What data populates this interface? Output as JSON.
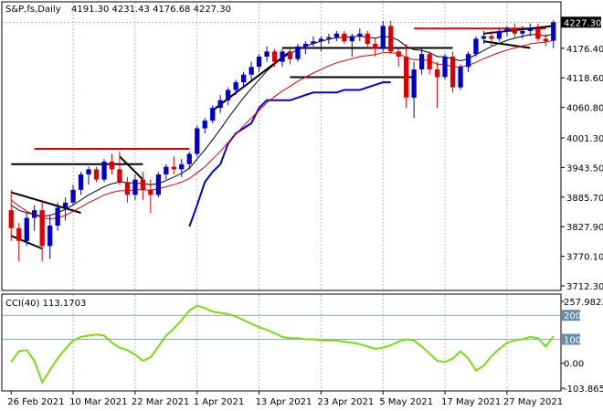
{
  "chart_data": [
    {
      "type": "candlestick",
      "header": {
        "symbol": "S&P,fs,Daily",
        "ohlc": "4191.30 4231.43 4176.68 4227.30"
      },
      "price_tag": "4227.30",
      "y_ticks": [
        "4176.40",
        "4118.60",
        "4060.80",
        "4001.30",
        "3943.50",
        "3885.70",
        "3827.90",
        "3770.10",
        "3712.30"
      ],
      "y_tick_values": [
        4176.4,
        4118.6,
        4060.8,
        4001.3,
        3943.5,
        3885.7,
        3827.9,
        3770.1,
        3712.3
      ],
      "ylim": [
        3712.3,
        4235.0
      ],
      "x_ticks": [
        {
          "label": "26 Feb 2021",
          "bar": 0
        },
        {
          "label": "10 Mar 2021",
          "bar": 8
        },
        {
          "label": "22 Mar 2021",
          "bar": 16
        },
        {
          "label": "1 Apr 2021",
          "bar": 24
        },
        {
          "label": "13 Apr 2021",
          "bar": 32
        },
        {
          "label": "23 Apr 2021",
          "bar": 40
        },
        {
          "label": "5 May 2021",
          "bar": 48
        },
        {
          "label": "17 May 2021",
          "bar": 56
        },
        {
          "label": "27 May 2021",
          "bar": 64
        }
      ],
      "candles": [
        [
          3860,
          3900,
          3800,
          3825
        ],
        [
          3825,
          3835,
          3760,
          3800
        ],
        [
          3800,
          3855,
          3790,
          3845
        ],
        [
          3845,
          3870,
          3820,
          3860
        ],
        [
          3860,
          3880,
          3760,
          3790
        ],
        [
          3790,
          3850,
          3765,
          3830
        ],
        [
          3830,
          3875,
          3820,
          3865
        ],
        [
          3865,
          3885,
          3840,
          3875
        ],
        [
          3875,
          3910,
          3870,
          3900
        ],
        [
          3900,
          3935,
          3890,
          3930
        ],
        [
          3930,
          3945,
          3910,
          3940
        ],
        [
          3940,
          3945,
          3915,
          3920
        ],
        [
          3920,
          3960,
          3915,
          3955
        ],
        [
          3955,
          3970,
          3930,
          3940
        ],
        [
          3940,
          3975,
          3910,
          3915
        ],
        [
          3915,
          3925,
          3875,
          3890
        ],
        [
          3890,
          3930,
          3880,
          3920
        ],
        [
          3920,
          3935,
          3880,
          3900
        ],
        [
          3900,
          3920,
          3855,
          3890
        ],
        [
          3890,
          3935,
          3885,
          3930
        ],
        [
          3930,
          3950,
          3920,
          3945
        ],
        [
          3945,
          3965,
          3930,
          3940
        ],
        [
          3940,
          3960,
          3925,
          3950
        ],
        [
          3950,
          3975,
          3940,
          3970
        ],
        [
          3970,
          4025,
          3965,
          4020
        ],
        [
          4020,
          4040,
          4010,
          4035
        ],
        [
          4035,
          4065,
          4030,
          4060
        ],
        [
          4060,
          4085,
          4050,
          4075
        ],
        [
          4075,
          4100,
          4065,
          4095
        ],
        [
          4095,
          4115,
          4085,
          4110
        ],
        [
          4110,
          4130,
          4100,
          4125
        ],
        [
          4125,
          4150,
          4115,
          4140
        ],
        [
          4140,
          4165,
          4130,
          4160
        ],
        [
          4160,
          4180,
          4150,
          4170
        ],
        [
          4170,
          4175,
          4140,
          4150
        ],
        [
          4150,
          4175,
          4140,
          4170
        ],
        [
          4170,
          4180,
          4145,
          4155
        ],
        [
          4155,
          4185,
          4150,
          4180
        ],
        [
          4180,
          4190,
          4165,
          4185
        ],
        [
          4185,
          4200,
          4180,
          4190
        ],
        [
          4190,
          4200,
          4170,
          4195
        ],
        [
          4195,
          4205,
          4185,
          4198
        ],
        [
          4198,
          4210,
          4190,
          4205
        ],
        [
          4205,
          4210,
          4185,
          4190
        ],
        [
          4190,
          4205,
          4160,
          4200
        ],
        [
          4200,
          4215,
          4190,
          4205
        ],
        [
          4205,
          4210,
          4175,
          4185
        ],
        [
          4185,
          4195,
          4160,
          4175
        ],
        [
          4175,
          4230,
          4170,
          4220
        ],
        [
          4220,
          4230,
          4165,
          4170
        ],
        [
          4170,
          4175,
          4140,
          4160
        ],
        [
          4160,
          4185,
          4060,
          4080
        ],
        [
          4080,
          4150,
          4040,
          4135
        ],
        [
          4135,
          4175,
          4125,
          4165
        ],
        [
          4165,
          4170,
          4125,
          4135
        ],
        [
          4135,
          4150,
          4060,
          4120
        ],
        [
          4120,
          4165,
          4115,
          4160
        ],
        [
          4160,
          4170,
          4090,
          4100
        ],
        [
          4100,
          4145,
          4095,
          4140
        ],
        [
          4140,
          4170,
          4130,
          4165
        ],
        [
          4165,
          4200,
          4160,
          4195
        ],
        [
          4195,
          4210,
          4185,
          4200
        ],
        [
          4200,
          4210,
          4180,
          4195
        ],
        [
          4195,
          4215,
          4190,
          4210
        ],
        [
          4210,
          4220,
          4200,
          4215
        ],
        [
          4215,
          4225,
          4195,
          4205
        ],
        [
          4205,
          4220,
          4195,
          4210
        ],
        [
          4210,
          4225,
          4200,
          4215
        ],
        [
          4215,
          4225,
          4190,
          4195
        ],
        [
          4195,
          4205,
          4180,
          4190
        ],
        [
          4191.3,
          4231.43,
          4176.68,
          4227.3
        ]
      ],
      "ma_red": [
        3880,
        3868,
        3858,
        3852,
        3845,
        3843,
        3845,
        3850,
        3858,
        3866,
        3875,
        3882,
        3890,
        3895,
        3898,
        3898,
        3900,
        3900,
        3899,
        3902,
        3906,
        3910,
        3915,
        3922,
        3933,
        3945,
        3960,
        3975,
        3992,
        4008,
        4025,
        4040,
        4055,
        4070,
        4082,
        4093,
        4102,
        4112,
        4120,
        4128,
        4135,
        4142,
        4148,
        4152,
        4156,
        4160,
        4162,
        4164,
        4168,
        4168,
        4166,
        4158,
        4154,
        4154,
        4152,
        4145,
        4145,
        4140,
        4140,
        4143,
        4149,
        4156,
        4162,
        4168,
        4173,
        4177,
        4181,
        4185,
        4187,
        4188,
        4192
      ],
      "ma_black": [
        3870,
        3860,
        3855,
        3852,
        3848,
        3850,
        3855,
        3862,
        3870,
        3880,
        3890,
        3898,
        3906,
        3912,
        3915,
        3914,
        3913,
        3912,
        3910,
        3912,
        3918,
        3925,
        3932,
        3942,
        3960,
        3978,
        3998,
        4018,
        4040,
        4060,
        4080,
        4098,
        4115,
        4132,
        4145,
        4157,
        4166,
        4174,
        4180,
        4186,
        4190,
        4194,
        4197,
        4198,
        4199,
        4200,
        4198,
        4196,
        4200,
        4198,
        4192,
        4180,
        4174,
        4172,
        4168,
        4160,
        4160,
        4155,
        4152,
        4156,
        4164,
        4172,
        4180,
        4186,
        4192,
        4196,
        4200,
        4203,
        4203,
        4200,
        4205
      ],
      "blue_line": [
        null,
        null,
        null,
        null,
        null,
        null,
        null,
        null,
        null,
        null,
        null,
        null,
        null,
        null,
        null,
        null,
        null,
        null,
        null,
        null,
        null,
        null,
        null,
        3828,
        3870,
        3915,
        3935,
        3950,
        3990,
        4010,
        4020,
        4030,
        4060,
        4075,
        4075,
        4075,
        4075,
        4080,
        4085,
        4090,
        4090,
        4090,
        4090,
        4095,
        4095,
        4095,
        4100,
        4105,
        4110,
        4110,
        null,
        null,
        null,
        null,
        null,
        null,
        null,
        null,
        null,
        null,
        null,
        null,
        null,
        null,
        null,
        null,
        null,
        null,
        null,
        null,
        null
      ],
      "trendlines": [
        {
          "color": "#dd0000",
          "x1": 3,
          "y1": 3980,
          "x2": 23,
          "y2": 3980
        },
        {
          "color": "#dd0000",
          "x1": 52,
          "y1": 4215,
          "x2": 69,
          "y2": 4215
        },
        {
          "color": "#000000",
          "x1": 0,
          "y1": 3950,
          "x2": 17,
          "y2": 3950
        },
        {
          "color": "#000000",
          "x1": 0,
          "y1": 3895,
          "x2": 9,
          "y2": 3855
        },
        {
          "color": "#000000",
          "x1": 0,
          "y1": 3810,
          "x2": 4,
          "y2": 3785
        },
        {
          "color": "#000000",
          "x1": 14,
          "y1": 3965,
          "x2": 17,
          "y2": 3920
        },
        {
          "color": "#000000",
          "x1": 26,
          "y1": 4055,
          "x2": 36,
          "y2": 4170
        },
        {
          "color": "#000000",
          "x1": 35,
          "y1": 4177,
          "x2": 57,
          "y2": 4177
        },
        {
          "color": "#000000",
          "x1": 36,
          "y1": 4120,
          "x2": 52,
          "y2": 4120
        },
        {
          "color": "#000000",
          "x1": 61,
          "y1": 4205,
          "x2": 70,
          "y2": 4220
        },
        {
          "color": "#000000",
          "x1": 61,
          "y1": 4190,
          "x2": 67,
          "y2": 4177
        }
      ]
    },
    {
      "type": "line",
      "label": "CCI(40) 113.1703",
      "y_ticks": [
        "257.9823",
        "200",
        "100",
        "0.00",
        "-103.8653"
      ],
      "y_tick_values": [
        257.98,
        200,
        100,
        0,
        -103.87
      ],
      "ylim": [
        -103.87,
        257.98
      ],
      "levels": [
        200,
        100
      ],
      "values": [
        5,
        50,
        55,
        10,
        -80,
        -30,
        20,
        60,
        95,
        110,
        115,
        120,
        115,
        85,
        65,
        55,
        35,
        10,
        25,
        70,
        115,
        145,
        180,
        220,
        240,
        230,
        215,
        210,
        205,
        195,
        180,
        165,
        150,
        140,
        125,
        110,
        105,
        105,
        100,
        100,
        95,
        95,
        95,
        90,
        85,
        80,
        70,
        60,
        65,
        75,
        90,
        100,
        95,
        70,
        40,
        10,
        5,
        20,
        50,
        20,
        -30,
        -10,
        30,
        60,
        85,
        95,
        100,
        110,
        105,
        70,
        113
      ]
    }
  ]
}
